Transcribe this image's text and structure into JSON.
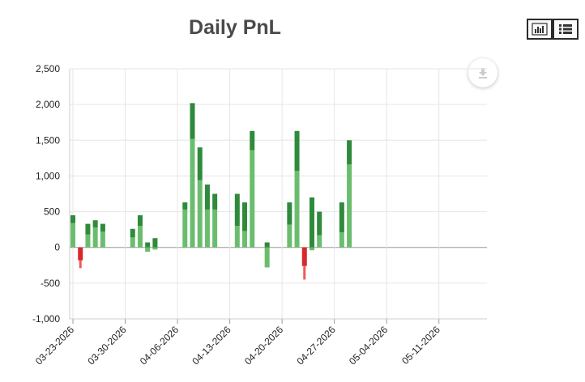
{
  "title": "Daily PnL",
  "toolbar": {
    "chart_icon": "bar-chart-icon",
    "list_icon": "list-icon",
    "download_icon": "download-icon"
  },
  "colors": {
    "positive_dark": "#2f8a3b",
    "positive_light": "#6bbd6e",
    "negative_dark": "#d9272e",
    "negative_light": "#ee5a5a",
    "zero_line": "#999999",
    "grid": "#e6e6e6"
  },
  "chart_data": {
    "type": "bar",
    "stacked": true,
    "ylim": [
      -1000,
      2500
    ],
    "yticks": [
      -1000,
      -500,
      0,
      500,
      1000,
      1500,
      2000,
      2500
    ],
    "ytick_labels": [
      "-1,000",
      "-500",
      "0",
      "500",
      "1,000",
      "1,500",
      "2,000",
      "2,500"
    ],
    "xlim": [
      "03-23-2026",
      "05-17-2026"
    ],
    "xticks": [
      "03-23-2026",
      "03-30-2026",
      "04-06-2026",
      "04-13-2026",
      "04-20-2026",
      "04-27-2026",
      "05-04-2026",
      "05-11-2026"
    ],
    "grid": true,
    "days": [
      {
        "date": "03-23-2026",
        "a": 340,
        "b": 110,
        "c": 0,
        "d": 0
      },
      {
        "date": "03-24-2026",
        "a": 0,
        "b": 0,
        "c": -180,
        "d": -110
      },
      {
        "date": "03-25-2026",
        "a": 180,
        "b": 150,
        "c": 0,
        "d": 0
      },
      {
        "date": "03-26-2026",
        "a": 280,
        "b": 100,
        "c": 0,
        "d": 0
      },
      {
        "date": "03-27-2026",
        "a": 220,
        "b": 110,
        "c": 0,
        "d": 0
      },
      {
        "date": "03-31-2026",
        "a": 140,
        "b": 120,
        "c": 0,
        "d": 0
      },
      {
        "date": "04-01-2026",
        "a": 300,
        "b": 150,
        "c": 0,
        "d": 0
      },
      {
        "date": "04-02-2026",
        "a": 0,
        "b": 70,
        "c": 0,
        "d": -60
      },
      {
        "date": "04-03-2026",
        "a": 0,
        "b": 130,
        "c": 0,
        "d": -30
      },
      {
        "date": "04-07-2026",
        "a": 530,
        "b": 100,
        "c": 0,
        "d": 0
      },
      {
        "date": "04-08-2026",
        "a": 1520,
        "b": 500,
        "c": 0,
        "d": 0
      },
      {
        "date": "04-09-2026",
        "a": 940,
        "b": 460,
        "c": 0,
        "d": 0
      },
      {
        "date": "04-10-2026",
        "a": 530,
        "b": 350,
        "c": 0,
        "d": 0
      },
      {
        "date": "04-11-2026",
        "a": 530,
        "b": 220,
        "c": 0,
        "d": 0
      },
      {
        "date": "04-14-2026",
        "a": 300,
        "b": 450,
        "c": 0,
        "d": 0
      },
      {
        "date": "04-15-2026",
        "a": 230,
        "b": 400,
        "c": 0,
        "d": 0
      },
      {
        "date": "04-16-2026",
        "a": 1360,
        "b": 270,
        "c": 0,
        "d": 0
      },
      {
        "date": "04-18-2026",
        "a": 0,
        "b": 70,
        "c": 0,
        "d": -280
      },
      {
        "date": "04-21-2026",
        "a": 320,
        "b": 310,
        "c": 0,
        "d": 0
      },
      {
        "date": "04-22-2026",
        "a": 1070,
        "b": 560,
        "c": 0,
        "d": 0
      },
      {
        "date": "04-23-2026",
        "a": 0,
        "b": 0,
        "c": -260,
        "d": -190
      },
      {
        "date": "04-24-2026",
        "a": 0,
        "b": 700,
        "c": 0,
        "d": -40
      },
      {
        "date": "04-25-2026",
        "a": 170,
        "b": 330,
        "c": 0,
        "d": 0
      },
      {
        "date": "04-28-2026",
        "a": 210,
        "b": 420,
        "c": 0,
        "d": 0
      },
      {
        "date": "04-29-2026",
        "a": 1160,
        "b": 340,
        "c": 0,
        "d": 0
      }
    ]
  }
}
